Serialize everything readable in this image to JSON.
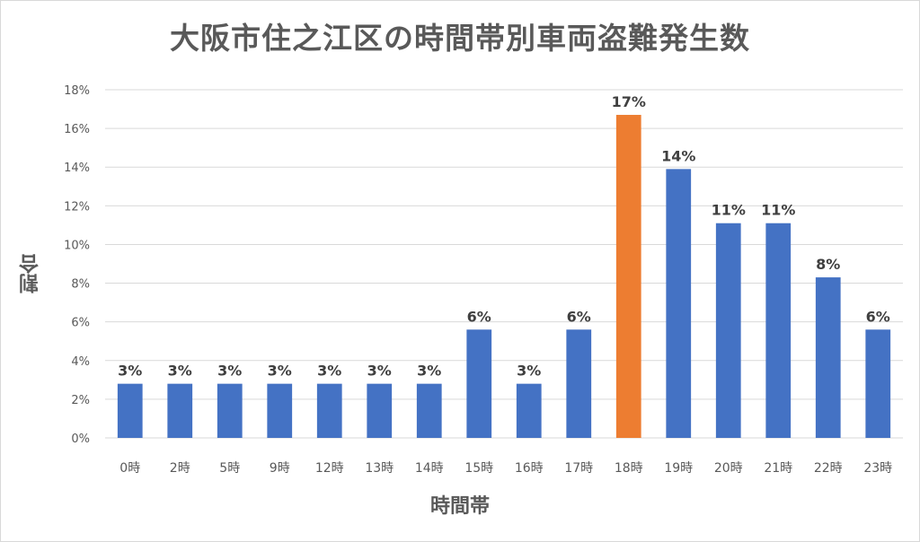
{
  "colors": {
    "bar": "#4472c4",
    "highlight": "#ed7d31",
    "grid": "#d9d9d9",
    "text": "#595959",
    "label": "#404040"
  },
  "chart_data": {
    "type": "bar",
    "title": "大阪市住之江区の時間帯別車両盗難発生数",
    "xlabel": "時間帯",
    "ylabel": "割合",
    "ylim": [
      0,
      18
    ],
    "yticks": [
      "0%",
      "2%",
      "4%",
      "6%",
      "8%",
      "10%",
      "12%",
      "14%",
      "16%",
      "18%"
    ],
    "grid": true,
    "legend": "none",
    "categories": [
      "0時",
      "2時",
      "5時",
      "9時",
      "12時",
      "13時",
      "14時",
      "15時",
      "16時",
      "17時",
      "18時",
      "19時",
      "20時",
      "21時",
      "22時",
      "23時"
    ],
    "values": [
      2.8,
      2.8,
      2.8,
      2.8,
      2.8,
      2.8,
      2.8,
      5.6,
      2.8,
      5.6,
      16.7,
      13.9,
      11.1,
      11.1,
      8.3,
      5.6
    ],
    "data_labels": [
      "3%",
      "3%",
      "3%",
      "3%",
      "3%",
      "3%",
      "3%",
      "6%",
      "3%",
      "6%",
      "17%",
      "14%",
      "11%",
      "11%",
      "8%",
      "6%"
    ],
    "highlight_index": 10
  }
}
